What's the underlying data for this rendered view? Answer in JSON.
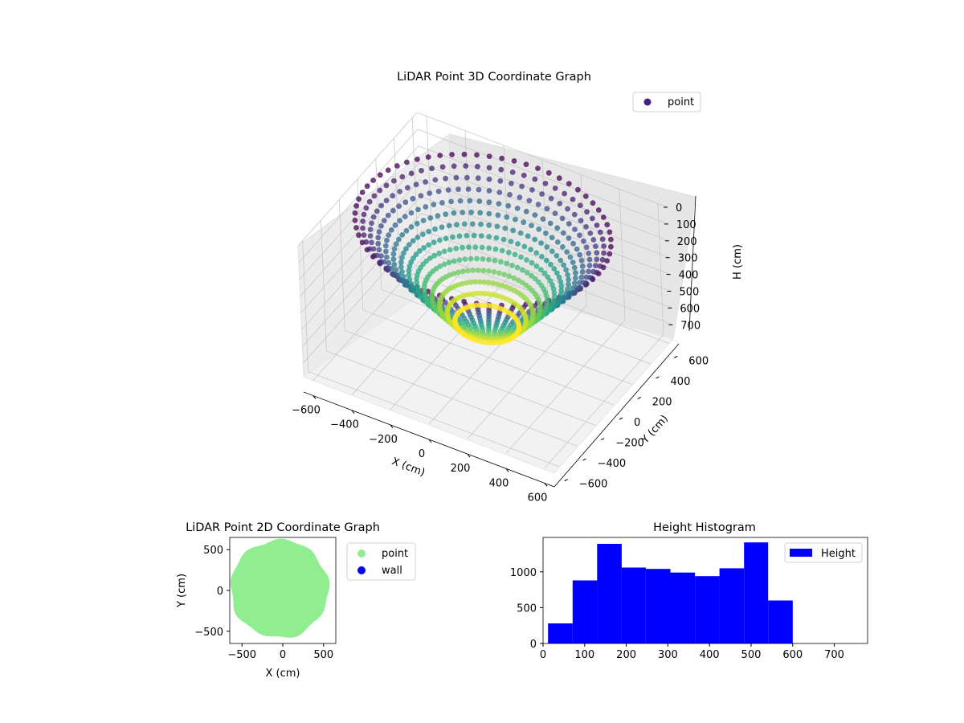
{
  "chart_data": [
    {
      "type": "scatter",
      "title": "LiDAR Point 3D Coordinate Graph",
      "xlabel": "X (cm)",
      "ylabel": "Y (cm)",
      "zlabel": "H (cm)",
      "xlim": [
        -650,
        650
      ],
      "ylim": [
        -650,
        650
      ],
      "zlim": [
        0,
        780
      ],
      "z_inverted": true,
      "xticks": [
        "−600",
        "−400",
        "−200",
        "0",
        "200",
        "400",
        "600"
      ],
      "yticks": [
        "−600",
        "−400",
        "−200",
        "0",
        "200",
        "400",
        "600"
      ],
      "zticks": [
        "0",
        "100",
        "200",
        "300",
        "400",
        "500",
        "600",
        "700"
      ],
      "colormap": "viridis",
      "legend": [
        {
          "label": "point",
          "color": "#46237a"
        }
      ],
      "legend_position": "upper-right",
      "grid": true,
      "description_values": {
        "ring_outer_radius": 600,
        "ring_inner_radius": 150,
        "max_height": 560
      }
    },
    {
      "type": "scatter",
      "title": "LiDAR Point 2D Coordinate Graph",
      "xlabel": "X (cm)",
      "ylabel": "Y (cm)",
      "xlim": [
        -650,
        650
      ],
      "ylim": [
        -650,
        650
      ],
      "xticks": [
        "−500",
        "0",
        "500"
      ],
      "yticks": [
        "500",
        "0",
        "−500"
      ],
      "series": [
        {
          "name": "point",
          "color": "#90ee90",
          "radius": 600
        },
        {
          "name": "wall",
          "color": "#0000ff"
        }
      ],
      "legend_position": "outside-right",
      "grid": false
    },
    {
      "type": "bar",
      "title": "Height Histogram",
      "xlabel": "",
      "ylabel": "",
      "bins": [
        {
          "from": 12,
          "to": 71,
          "value": 280
        },
        {
          "from": 71,
          "to": 130,
          "value": 880
        },
        {
          "from": 130,
          "to": 189,
          "value": 1390
        },
        {
          "from": 189,
          "to": 247,
          "value": 1060
        },
        {
          "from": 247,
          "to": 306,
          "value": 1040
        },
        {
          "from": 306,
          "to": 365,
          "value": 990
        },
        {
          "from": 365,
          "to": 424,
          "value": 940
        },
        {
          "from": 424,
          "to": 483,
          "value": 1050
        },
        {
          "from": 483,
          "to": 541,
          "value": 1410
        },
        {
          "from": 541,
          "to": 600,
          "value": 600
        }
      ],
      "xlim": [
        0,
        780
      ],
      "ylim": [
        0,
        1480
      ],
      "xticks": [
        "0",
        "100",
        "200",
        "300",
        "400",
        "500",
        "600",
        "700"
      ],
      "yticks": [
        "0",
        "500",
        "1000"
      ],
      "series": [
        {
          "name": "Height",
          "color": "#0000ff"
        }
      ],
      "legend_position": "upper-right",
      "grid": false
    }
  ]
}
